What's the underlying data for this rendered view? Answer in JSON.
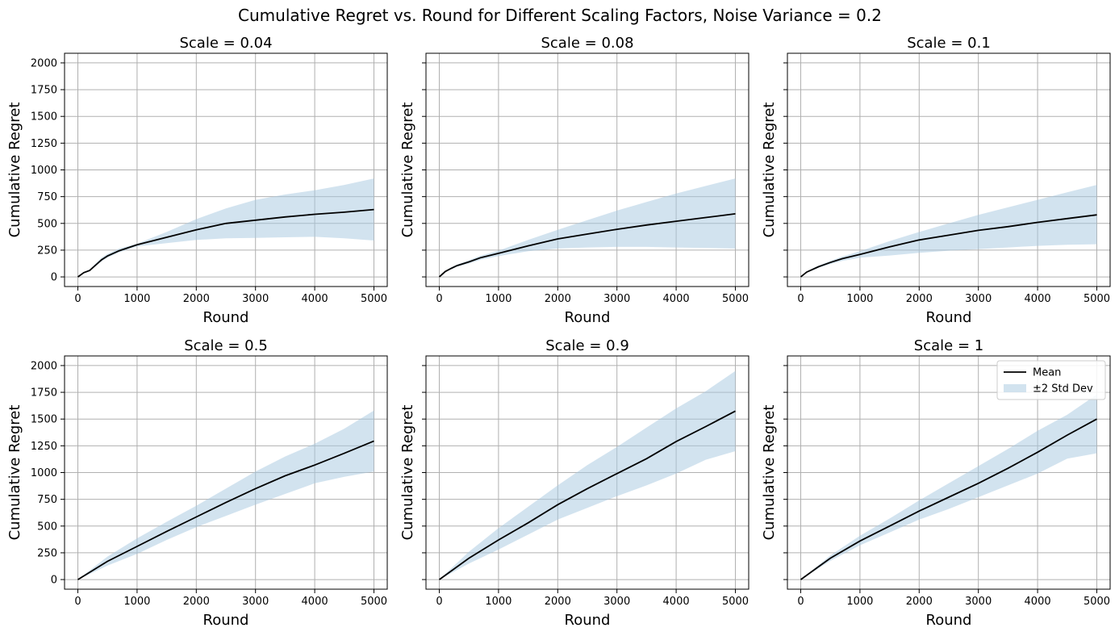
{
  "figure": {
    "title": "Cumulative Regret vs. Round for Different Scaling Factors, Noise Variance = 0.2"
  },
  "legend": {
    "mean_label": "Mean",
    "band_label": "±2 Std Dev",
    "placement": "upper-right of panel 6"
  },
  "colors": {
    "mean_line": "#000000",
    "band": "#a6c8df",
    "grid": "#b0b0b0"
  },
  "chart_data": [
    {
      "type": "line",
      "title": "Scale = 0.04",
      "xlabel": "Round",
      "ylabel": "Cumulative Regret",
      "xlim": [
        0,
        5000
      ],
      "ylim": [
        0,
        2000
      ],
      "xticks": [
        0,
        1000,
        2000,
        3000,
        4000,
        5000
      ],
      "yticks": [
        0,
        250,
        500,
        750,
        1000,
        1250,
        1500,
        1750,
        2000
      ],
      "grid": true,
      "x": [
        0,
        100,
        200,
        300,
        400,
        500,
        700,
        1000,
        1500,
        2000,
        2500,
        3000,
        3500,
        4000,
        4500,
        5000
      ],
      "series": [
        {
          "name": "Mean",
          "values": [
            0,
            40,
            60,
            110,
            160,
            195,
            245,
            300,
            370,
            440,
            500,
            530,
            560,
            585,
            605,
            630
          ]
        },
        {
          "name": "±2 Std Dev upper",
          "values": [
            0,
            45,
            70,
            125,
            180,
            215,
            265,
            310,
            420,
            540,
            640,
            720,
            770,
            810,
            860,
            920
          ]
        },
        {
          "name": "±2 Std Dev lower",
          "values": [
            0,
            35,
            55,
            100,
            145,
            180,
            230,
            285,
            315,
            345,
            360,
            365,
            370,
            375,
            360,
            340
          ]
        }
      ]
    },
    {
      "type": "line",
      "title": "Scale = 0.08",
      "xlabel": "Round",
      "ylabel": "Cumulative Regret",
      "xlim": [
        0,
        5000
      ],
      "ylim": [
        0,
        2000
      ],
      "xticks": [
        0,
        1000,
        2000,
        3000,
        4000,
        5000
      ],
      "yticks": [
        0,
        250,
        500,
        750,
        1000,
        1250,
        1500,
        1750,
        2000
      ],
      "grid": true,
      "x": [
        0,
        100,
        200,
        300,
        500,
        700,
        1000,
        1500,
        2000,
        2500,
        3000,
        3500,
        4000,
        4500,
        5000
      ],
      "series": [
        {
          "name": "Mean",
          "values": [
            0,
            50,
            80,
            105,
            140,
            180,
            220,
            290,
            355,
            400,
            445,
            485,
            520,
            555,
            590
          ]
        },
        {
          "name": "±2 Std Dev upper",
          "values": [
            0,
            55,
            90,
            115,
            155,
            200,
            245,
            345,
            440,
            530,
            620,
            700,
            780,
            850,
            920
          ]
        },
        {
          "name": "±2 Std Dev lower",
          "values": [
            0,
            45,
            70,
            95,
            125,
            160,
            195,
            240,
            265,
            275,
            280,
            280,
            275,
            270,
            265
          ]
        }
      ]
    },
    {
      "type": "line",
      "title": "Scale = 0.1",
      "xlabel": "Round",
      "ylabel": "Cumulative Regret",
      "xlim": [
        0,
        5000
      ],
      "ylim": [
        0,
        2000
      ],
      "xticks": [
        0,
        1000,
        2000,
        3000,
        4000,
        5000
      ],
      "yticks": [
        0,
        250,
        500,
        750,
        1000,
        1250,
        1500,
        1750,
        2000
      ],
      "grid": true,
      "x": [
        0,
        100,
        200,
        300,
        500,
        700,
        1000,
        1500,
        2000,
        2500,
        3000,
        3500,
        4000,
        4500,
        5000
      ],
      "series": [
        {
          "name": "Mean",
          "values": [
            0,
            45,
            70,
            95,
            135,
            170,
            210,
            280,
            345,
            390,
            435,
            470,
            510,
            545,
            580
          ]
        },
        {
          "name": "±2 Std Dev upper",
          "values": [
            0,
            50,
            80,
            105,
            150,
            190,
            240,
            335,
            420,
            500,
            580,
            650,
            720,
            790,
            860
          ]
        },
        {
          "name": "±2 Std Dev lower",
          "values": [
            0,
            40,
            60,
            85,
            120,
            150,
            180,
            200,
            225,
            245,
            260,
            275,
            290,
            300,
            305
          ]
        }
      ]
    },
    {
      "type": "line",
      "title": "Scale = 0.5",
      "xlabel": "Round",
      "ylabel": "Cumulative Regret",
      "xlim": [
        0,
        5000
      ],
      "ylim": [
        0,
        2000
      ],
      "xticks": [
        0,
        1000,
        2000,
        3000,
        4000,
        5000
      ],
      "yticks": [
        0,
        250,
        500,
        750,
        1000,
        1250,
        1500,
        1750,
        2000
      ],
      "grid": true,
      "x": [
        0,
        500,
        1000,
        1500,
        2000,
        2500,
        3000,
        3500,
        4000,
        4500,
        5000
      ],
      "series": [
        {
          "name": "Mean",
          "values": [
            0,
            170,
            310,
            450,
            585,
            720,
            850,
            970,
            1070,
            1180,
            1295
          ]
        },
        {
          "name": "±2 Std Dev upper",
          "values": [
            0,
            215,
            385,
            540,
            690,
            850,
            1010,
            1150,
            1270,
            1410,
            1580
          ]
        },
        {
          "name": "±2 Std Dev lower",
          "values": [
            0,
            130,
            240,
            370,
            490,
            595,
            700,
            800,
            900,
            960,
            1010
          ]
        }
      ]
    },
    {
      "type": "line",
      "title": "Scale = 0.9",
      "xlabel": "Round",
      "ylabel": "Cumulative Regret",
      "xlim": [
        0,
        5000
      ],
      "ylim": [
        0,
        2000
      ],
      "xticks": [
        0,
        1000,
        2000,
        3000,
        4000,
        5000
      ],
      "yticks": [
        0,
        250,
        500,
        750,
        1000,
        1250,
        1500,
        1750,
        2000
      ],
      "grid": true,
      "x": [
        0,
        500,
        1000,
        1500,
        2000,
        2500,
        3000,
        3500,
        4000,
        4500,
        5000
      ],
      "series": [
        {
          "name": "Mean",
          "values": [
            0,
            200,
            370,
            530,
            700,
            850,
            990,
            1130,
            1290,
            1430,
            1575
          ]
        },
        {
          "name": "±2 Std Dev upper",
          "values": [
            0,
            260,
            480,
            680,
            880,
            1070,
            1240,
            1420,
            1600,
            1760,
            1950
          ]
        },
        {
          "name": "±2 Std Dev lower",
          "values": [
            0,
            150,
            280,
            420,
            560,
            670,
            780,
            880,
            990,
            1120,
            1200
          ]
        }
      ]
    },
    {
      "type": "line",
      "title": "Scale = 1",
      "xlabel": "Round",
      "ylabel": "Cumulative Regret",
      "xlim": [
        0,
        5000
      ],
      "ylim": [
        0,
        2000
      ],
      "xticks": [
        0,
        1000,
        2000,
        3000,
        4000,
        5000
      ],
      "yticks": [
        0,
        250,
        500,
        750,
        1000,
        1250,
        1500,
        1750,
        2000
      ],
      "grid": true,
      "x": [
        0,
        500,
        1000,
        1500,
        2000,
        2500,
        3000,
        3500,
        4000,
        4500,
        5000
      ],
      "series": [
        {
          "name": "Mean",
          "values": [
            0,
            200,
            360,
            500,
            640,
            770,
            900,
            1040,
            1190,
            1350,
            1500
          ]
        },
        {
          "name": "±2 Std Dev upper",
          "values": [
            0,
            225,
            410,
            570,
            740,
            900,
            1060,
            1220,
            1390,
            1540,
            1730
          ]
        },
        {
          "name": "±2 Std Dev lower",
          "values": [
            0,
            175,
            320,
            440,
            560,
            660,
            770,
            880,
            990,
            1130,
            1180
          ]
        }
      ]
    }
  ]
}
